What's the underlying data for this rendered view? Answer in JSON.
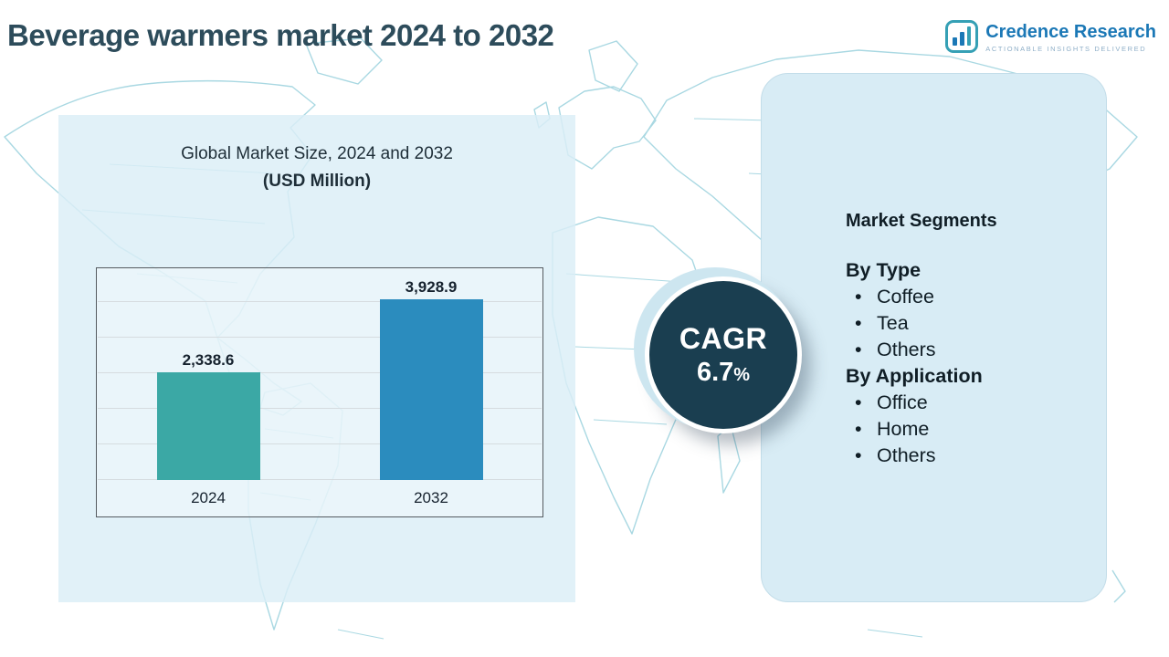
{
  "title": "Beverage warmers market 2024 to 2032",
  "logo": {
    "name": "Credence Research",
    "tagline": "Actionable Insights Delivered"
  },
  "chart_panel": {
    "title_line1": "Global Market Size, 2024 and 2032",
    "title_line2": "(USD Million)"
  },
  "chart_data": {
    "type": "bar",
    "title": "Global Market Size, 2024 and 2032",
    "units": "USD Million",
    "categories": [
      "2024",
      "2032"
    ],
    "values": [
      2338.6,
      3928.9
    ],
    "value_labels": [
      "2,338.6",
      "3,928.9"
    ],
    "bar_colors": [
      "#3BA8A5",
      "#2B8CBE"
    ],
    "ylim": [
      0,
      4000
    ],
    "grid": true,
    "legend": false
  },
  "cagr": {
    "label": "CAGR",
    "value": "6.7",
    "unit": "%"
  },
  "segments": {
    "title": "Market Segments",
    "groups": [
      {
        "heading": "By Type",
        "items": [
          "Coffee",
          "Tea",
          "Others"
        ]
      },
      {
        "heading": "By Application",
        "items": [
          "Office",
          "Home",
          "Others"
        ]
      }
    ]
  },
  "colors": {
    "accent_dark": "#1a3e50",
    "panel_blue": "#d8ecf5",
    "map_line": "#a9d8e2",
    "title_text": "#2d4c5b",
    "logo_blue": "#1b78b6",
    "logo_teal": "#35a0b5"
  }
}
